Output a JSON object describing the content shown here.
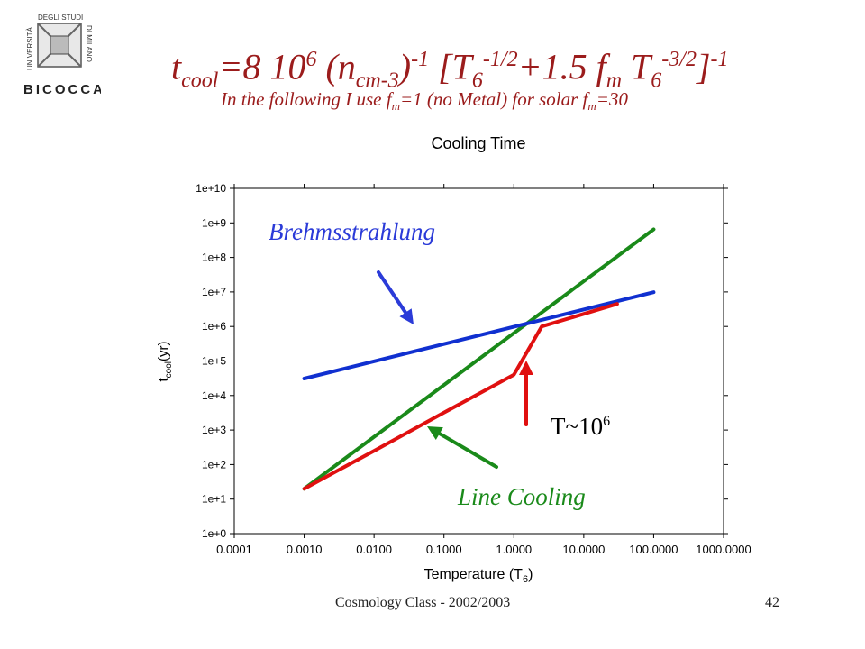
{
  "slide": {
    "title": {
      "t": "t",
      "cool": "cool",
      "eq": "=8 10",
      "exp6": "6",
      "n": " (n",
      "cm": "cm-3",
      "close": ")",
      "exp_m1": "-1",
      "bracket_T": " [T",
      "six": "6",
      "exp_mhalf": "-1/2",
      "plus": "+1.5 f",
      "m": "m",
      "T2": " T",
      "six2": "6",
      "exp_m32": "-3/2",
      "bracket_close": "]",
      "exp_m1b": "-1"
    },
    "subtitle": {
      "part1": "In the following I use f",
      "m1": "m",
      "part2": "=1 (no Metal) for solar f",
      "m2": "m",
      "part3": "=30"
    },
    "footer_left": "Cosmology Class - 2002/2003",
    "footer_right": "42",
    "logo": {
      "left_text": "UNIVERSITÀ",
      "right_text": "DEGLI STUDI",
      "side_text": "DI MILANO",
      "bottom_text": "BICOCCA"
    }
  },
  "annotations": {
    "brems": "Brehmsstrahlung",
    "line": "Line Cooling",
    "tnote_base": "T~10",
    "tnote_exp": "6"
  },
  "colors": {
    "title": "#9b1c1c",
    "brems": "#2b3bd8",
    "line_cooling": "#1a8a1a",
    "total": "#e01010"
  },
  "chart_data": {
    "type": "line",
    "title": "Cooling Time",
    "xlabel": "Temperature (T6)",
    "ylabel": "tcool(yr)",
    "xscale": "log",
    "yscale": "log",
    "xlim": [
      0.0001,
      1000
    ],
    "ylim": [
      1,
      10000000000
    ],
    "xticks": [
      "0.0001",
      "0.0010",
      "0.0100",
      "0.1000",
      "1.0000",
      "10.0000",
      "100.0000",
      "1000.0000"
    ],
    "yticks": [
      "1e+0",
      "1e+1",
      "1e+2",
      "1e+3",
      "1e+4",
      "1e+5",
      "1e+6",
      "1e+7",
      "1e+8",
      "1e+9",
      "1e+10"
    ],
    "series": [
      {
        "color": "#1a8a1a",
        "x": [
          0.001,
          100
        ],
        "y": [
          20,
          650000000
        ]
      },
      {
        "color": "#1030d0",
        "x": [
          0.001,
          100
        ],
        "y": [
          31000,
          9800000
        ]
      },
      {
        "color": "#e01010",
        "x": [
          0.001,
          0.01,
          0.1,
          1,
          2.5,
          30
        ],
        "y": [
          20,
          250,
          3200,
          40000,
          1000000,
          4500000
        ]
      }
    ],
    "grid": false,
    "legend": "none"
  }
}
